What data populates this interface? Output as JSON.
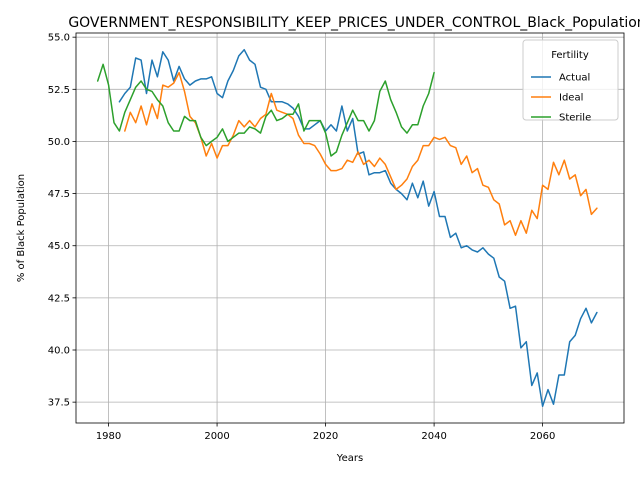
{
  "chart_data": {
    "type": "line",
    "title": "GOVERNMENT_RESPONSIBILITY_KEEP_PRICES_UNDER_CONTROL_Black_Population",
    "xlabel": "Years",
    "ylabel": "% of Black Population",
    "xlim": [
      1974,
      2075
    ],
    "ylim": [
      36.5,
      55.2
    ],
    "xticks": [
      1980,
      2000,
      2020,
      2040,
      2060
    ],
    "yticks": [
      37.5,
      40.0,
      42.5,
      45.0,
      47.5,
      50.0,
      52.5,
      55.0
    ],
    "xtick_labels": [
      "1980",
      "2000",
      "2020",
      "2040",
      "2060"
    ],
    "ytick_labels": [
      "37.5",
      "40.0",
      "42.5",
      "45.0",
      "47.5",
      "50.0",
      "52.5",
      "55.0"
    ],
    "grid": true,
    "legend": {
      "title": "Fertility",
      "placement": "top-right"
    },
    "series": [
      {
        "name": "Actual",
        "color": "#1f77b4",
        "x": [
          1982,
          1983,
          1984,
          1985,
          1986,
          1987,
          1988,
          1989,
          1990,
          1991,
          1992,
          1993,
          1994,
          1995,
          1996,
          1997,
          1998,
          1999,
          2000,
          2001,
          2002,
          2003,
          2004,
          2005,
          2006,
          2007,
          2008,
          2009,
          2010,
          2011,
          2012,
          2013,
          2014,
          2015,
          2016,
          2017,
          2018,
          2019,
          2020,
          2021,
          2022,
          2023,
          2024,
          2025,
          2026,
          2027,
          2028,
          2029,
          2030,
          2031,
          2032,
          2033,
          2034,
          2035,
          2036,
          2037,
          2038,
          2039,
          2040,
          2041,
          2042,
          2043,
          2044,
          2045,
          2046,
          2047,
          2048,
          2049,
          2050,
          2051,
          2052,
          2053,
          2054,
          2055,
          2056,
          2057,
          2058,
          2059,
          2060,
          2061,
          2062,
          2063,
          2064,
          2065,
          2066,
          2067,
          2068,
          2069,
          2070
        ],
        "values": [
          51.9,
          52.3,
          52.6,
          54.0,
          53.9,
          52.3,
          53.9,
          53.1,
          54.3,
          53.9,
          52.9,
          53.6,
          53.0,
          52.7,
          52.9,
          53.0,
          53.0,
          53.1,
          52.3,
          52.1,
          52.9,
          53.4,
          54.1,
          54.4,
          53.9,
          53.7,
          52.6,
          52.5,
          51.9,
          51.9,
          51.9,
          51.8,
          51.6,
          51.2,
          50.6,
          50.6,
          50.8,
          51.0,
          50.5,
          50.8,
          50.5,
          51.7,
          50.5,
          51.1,
          49.4,
          49.5,
          48.4,
          48.5,
          48.5,
          48.6,
          48.0,
          47.7,
          47.5,
          47.2,
          48.0,
          47.3,
          48.1,
          46.9,
          47.6,
          46.4,
          46.4,
          45.4,
          45.6,
          44.9,
          45.0,
          44.8,
          44.7,
          44.9,
          44.6,
          44.4,
          43.5,
          43.3,
          42.0,
          42.1,
          40.1,
          40.4,
          38.3,
          38.9,
          37.3,
          38.1,
          37.4,
          38.8,
          38.8,
          40.4,
          40.7,
          41.5,
          42.0,
          41.3,
          41.8
        ]
      },
      {
        "name": "Ideal",
        "color": "#ff7f0e",
        "x": [
          1983,
          1984,
          1985,
          1986,
          1987,
          1988,
          1989,
          1990,
          1991,
          1992,
          1993,
          1994,
          1995,
          1996,
          1997,
          1998,
          1999,
          2000,
          2001,
          2002,
          2003,
          2004,
          2005,
          2006,
          2007,
          2008,
          2009,
          2010,
          2011,
          2012,
          2013,
          2014,
          2015,
          2016,
          2017,
          2018,
          2019,
          2020,
          2021,
          2022,
          2023,
          2024,
          2025,
          2026,
          2027,
          2028,
          2029,
          2030,
          2031,
          2032,
          2033,
          2034,
          2035,
          2036,
          2037,
          2038,
          2039,
          2040,
          2041,
          2042,
          2043,
          2044,
          2045,
          2046,
          2047,
          2048,
          2049,
          2050,
          2051,
          2052,
          2053,
          2054,
          2055,
          2056,
          2057,
          2058,
          2059,
          2060,
          2061,
          2062,
          2063,
          2064,
          2065,
          2066,
          2067,
          2068,
          2069,
          2070
        ],
        "values": [
          50.5,
          51.4,
          50.9,
          51.7,
          50.8,
          51.8,
          51.1,
          52.7,
          52.6,
          52.8,
          53.3,
          52.4,
          51.2,
          50.9,
          50.2,
          49.3,
          49.9,
          49.2,
          49.8,
          49.8,
          50.3,
          51.0,
          50.7,
          51.0,
          50.7,
          51.1,
          51.3,
          52.3,
          51.5,
          51.4,
          51.3,
          51.1,
          50.3,
          49.9,
          49.9,
          49.8,
          49.4,
          48.9,
          48.6,
          48.6,
          48.7,
          49.1,
          49.0,
          49.5,
          48.9,
          49.1,
          48.8,
          49.2,
          48.9,
          48.3,
          47.7,
          47.9,
          48.2,
          48.8,
          49.1,
          49.8,
          49.8,
          50.2,
          50.1,
          50.2,
          49.8,
          49.7,
          48.9,
          49.3,
          48.5,
          48.7,
          47.9,
          47.8,
          47.2,
          47.0,
          46.0,
          46.2,
          45.5,
          46.2,
          45.6,
          46.7,
          46.3,
          47.9,
          47.7,
          49.0,
          48.4,
          49.1,
          48.2,
          48.4,
          47.4,
          47.7,
          46.5,
          46.8
        ]
      },
      {
        "name": "Sterile",
        "color": "#2ca02c",
        "x": [
          1978,
          1979,
          1980,
          1981,
          1982,
          1983,
          1984,
          1985,
          1986,
          1987,
          1988,
          1989,
          1990,
          1991,
          1992,
          1993,
          1994,
          1995,
          1996,
          1997,
          1998,
          1999,
          2000,
          2001,
          2002,
          2003,
          2004,
          2005,
          2006,
          2007,
          2008,
          2009,
          2010,
          2011,
          2012,
          2013,
          2014,
          2015,
          2016,
          2017,
          2018,
          2019,
          2020,
          2021,
          2022,
          2023,
          2024,
          2025,
          2026,
          2027,
          2028,
          2029,
          2030,
          2031,
          2032,
          2033,
          2034,
          2035,
          2036,
          2037,
          2038,
          2039,
          2040
        ],
        "values": [
          52.9,
          53.7,
          52.7,
          50.9,
          50.5,
          51.4,
          52.0,
          52.6,
          52.9,
          52.5,
          52.4,
          52.0,
          51.7,
          50.9,
          50.5,
          50.5,
          51.2,
          51.0,
          51.0,
          50.2,
          49.8,
          50.0,
          50.2,
          50.6,
          50.0,
          50.2,
          50.4,
          50.4,
          50.7,
          50.6,
          50.4,
          51.2,
          51.5,
          51.0,
          51.1,
          51.3,
          51.3,
          51.8,
          50.5,
          51.0,
          51.0,
          51.0,
          50.4,
          49.3,
          49.5,
          50.3,
          50.9,
          51.5,
          51.0,
          51.0,
          50.5,
          51.0,
          52.4,
          52.9,
          52.0,
          51.4,
          50.7,
          50.4,
          50.8,
          50.8,
          51.7,
          52.3,
          53.3
        ]
      }
    ]
  }
}
